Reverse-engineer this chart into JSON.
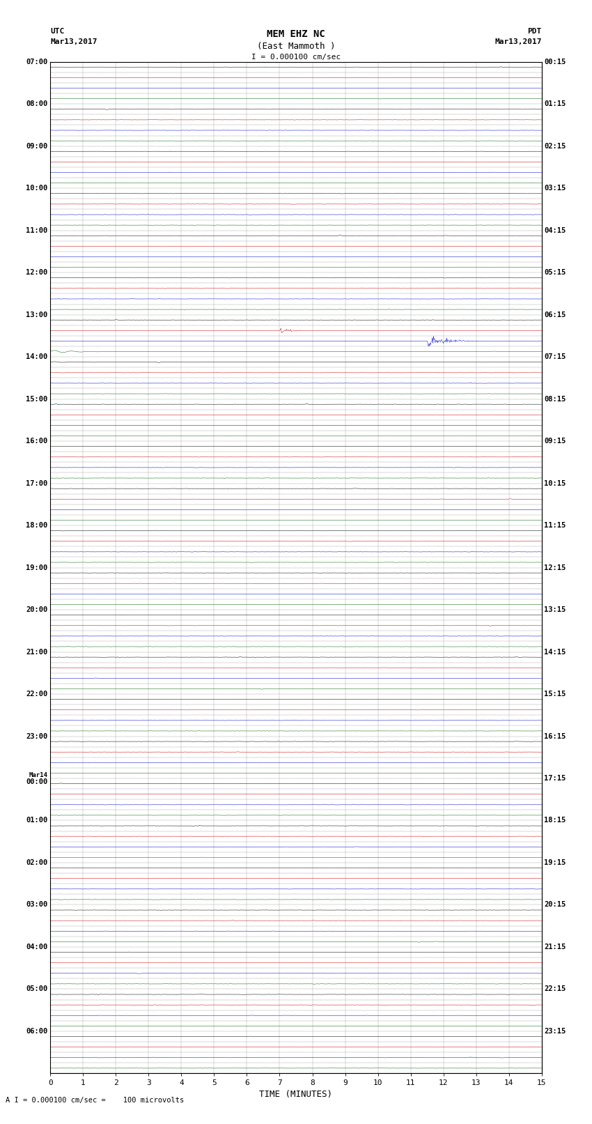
{
  "title_line1": "MEM EHZ NC",
  "title_line2": "(East Mammoth )",
  "scale_text": "I = 0.000100 cm/sec",
  "bottom_text": "A I = 0.000100 cm/sec =    100 microvolts",
  "left_label": "UTC",
  "left_date": "Mar13,2017",
  "right_label": "PDT",
  "right_date": "Mar13,2017",
  "xlabel": "TIME (MINUTES)",
  "xlim": [
    0,
    15
  ],
  "bg_color": "#ffffff",
  "grid_color": "#808080",
  "trace_colors": [
    "#000000",
    "#cc0000",
    "#0000cc",
    "#006600"
  ],
  "utc_labels": [
    "07:00",
    "08:00",
    "09:00",
    "10:00",
    "11:00",
    "12:00",
    "13:00",
    "14:00",
    "15:00",
    "16:00",
    "17:00",
    "18:00",
    "19:00",
    "20:00",
    "21:00",
    "22:00",
    "23:00",
    "Mar14\n00:00",
    "01:00",
    "02:00",
    "03:00",
    "04:00",
    "05:00",
    "06:00"
  ],
  "pdt_labels": [
    "00:15",
    "01:15",
    "02:15",
    "03:15",
    "04:15",
    "05:15",
    "06:15",
    "07:15",
    "08:15",
    "09:15",
    "10:15",
    "11:15",
    "12:15",
    "13:15",
    "14:15",
    "15:15",
    "16:15",
    "17:15",
    "18:15",
    "19:15",
    "20:15",
    "21:15",
    "22:15",
    "23:15"
  ],
  "n_rows": 96,
  "rows_per_hour": 4,
  "noise_scale": 0.008,
  "eq_row": 28,
  "eq_minute": 11.5,
  "eq_amplitude": 0.45,
  "eq_duration_samples": 150,
  "seed": 12345
}
